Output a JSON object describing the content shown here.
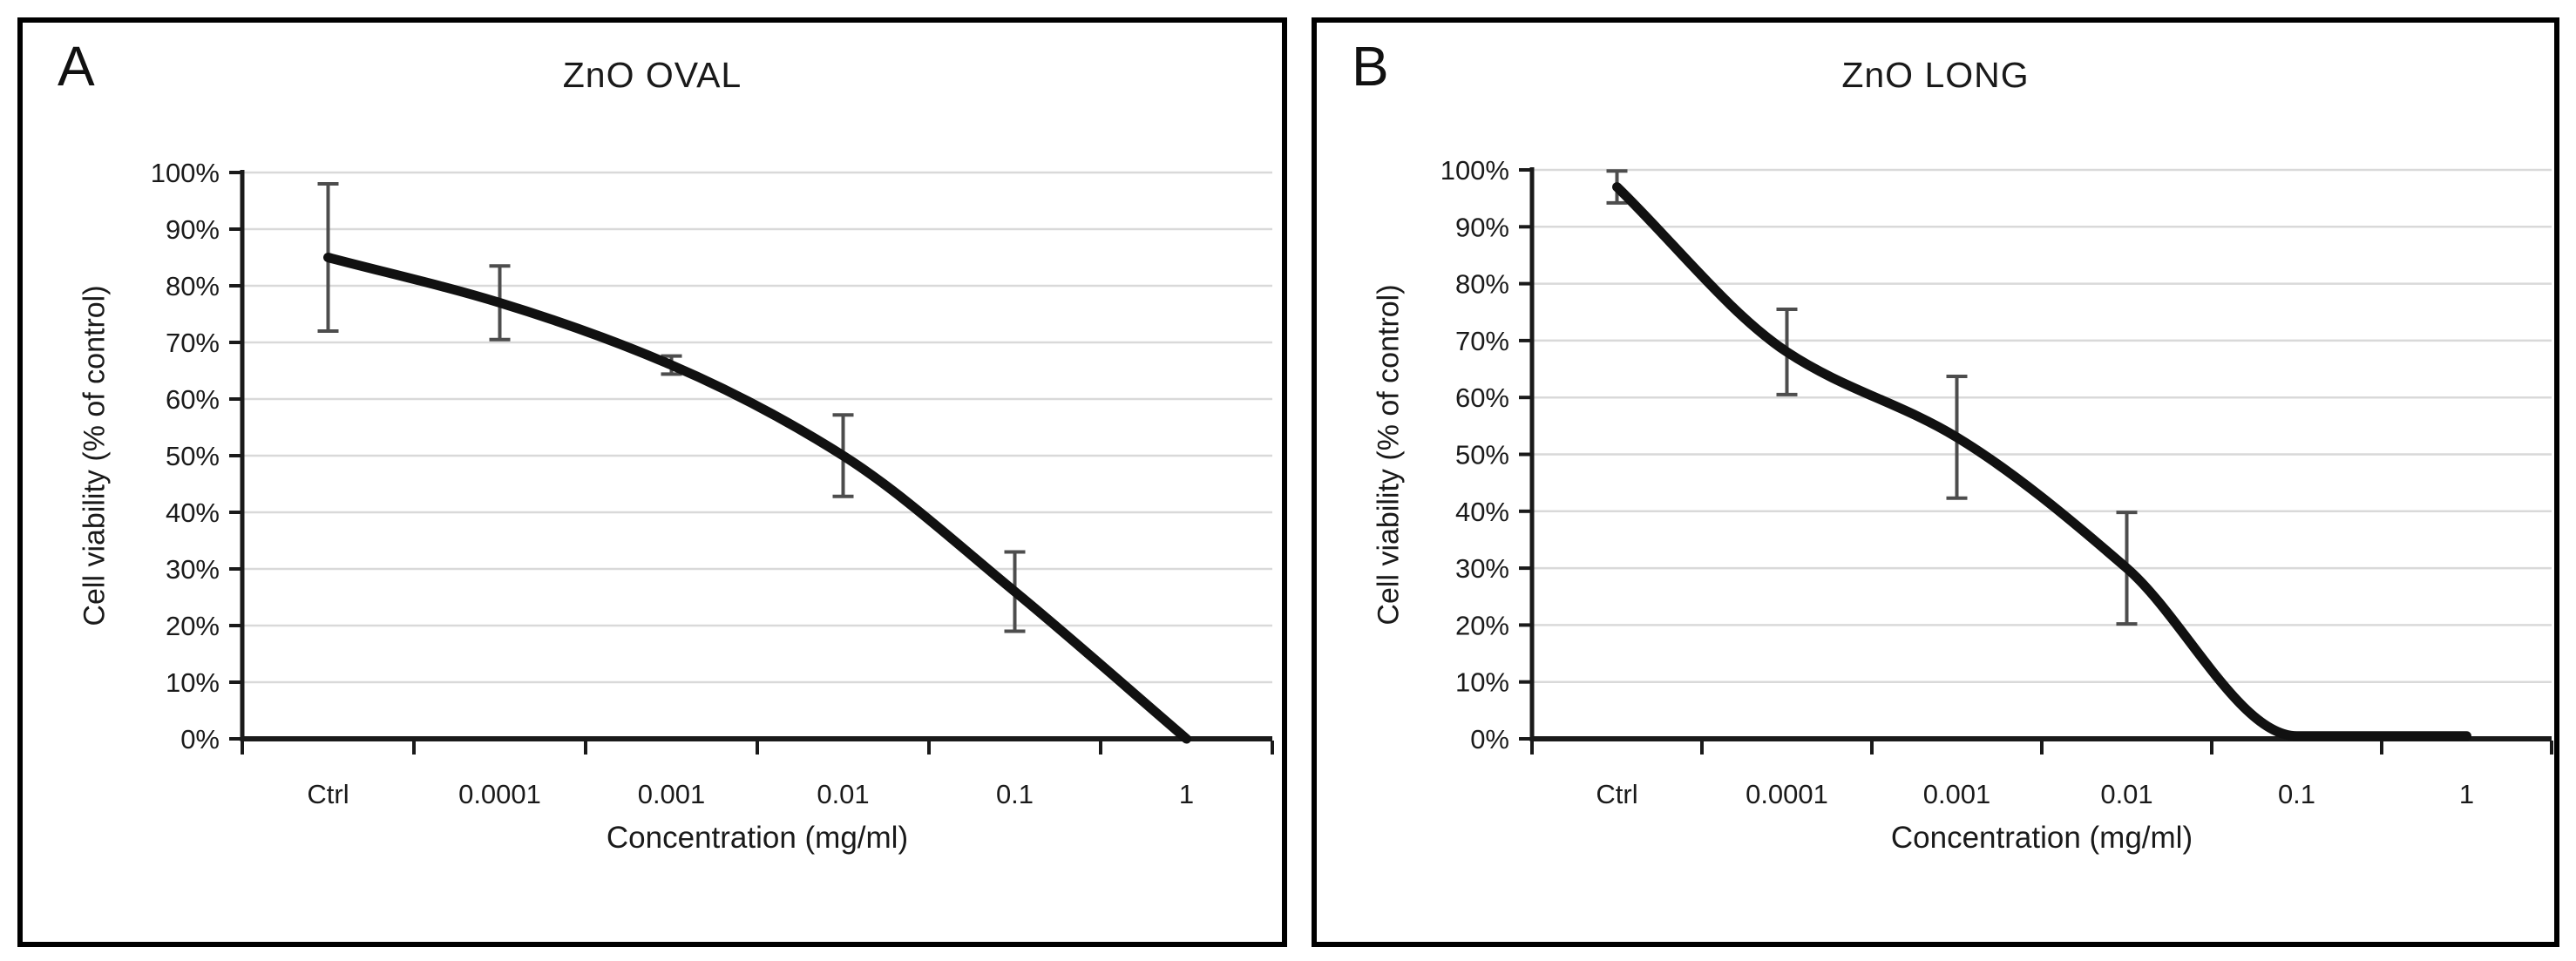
{
  "figure": {
    "background": "#ffffff",
    "colors": {
      "line": "#111111",
      "error_bar": "#4d4d4d",
      "gridline": "#d9d9d9",
      "axis": "#1a1a1a",
      "text": "#1a1a1a",
      "panel_border": "#000000"
    }
  },
  "chart_data": [
    {
      "type": "line",
      "panel_label": "A",
      "title": "ZnO OVAL",
      "xlabel": "Concentration (mg/ml)",
      "ylabel": "Cell viability (% of control)",
      "categories": [
        "Ctrl",
        "0.0001",
        "0.001",
        "0.01",
        "0.1",
        "1"
      ],
      "series": [
        {
          "name": "ZnO OVAL cell viability",
          "values": [
            85,
            77,
            66,
            50,
            26,
            0
          ],
          "error_bars": [
            13,
            6.5,
            1.6,
            7.2,
            7,
            0
          ]
        }
      ],
      "ylim": [
        0,
        100
      ],
      "ytick_step": 10,
      "ytick_labels": [
        "0%",
        "10%",
        "20%",
        "30%",
        "40%",
        "50%",
        "60%",
        "70%",
        "80%",
        "90%",
        "100%"
      ],
      "grid": "horizontal",
      "legend": "none"
    },
    {
      "type": "line",
      "panel_label": "B",
      "title": "ZnO LONG",
      "xlabel": "Concentration (mg/ml)",
      "ylabel": "Cell viability (% of control)",
      "categories": [
        "Ctrl",
        "0.0001",
        "0.001",
        "0.01",
        "0.1",
        "1"
      ],
      "series": [
        {
          "name": "ZnO LONG cell viability",
          "values": [
            97,
            68,
            53,
            30,
            0.5,
            0.5
          ],
          "error_bars": [
            2.8,
            7.5,
            10.7,
            9.8,
            0,
            0
          ]
        }
      ],
      "ylim": [
        0,
        100
      ],
      "ytick_step": 10,
      "ytick_labels": [
        "0%",
        "10%",
        "20%",
        "30%",
        "40%",
        "50%",
        "60%",
        "70%",
        "80%",
        "90%",
        "100%"
      ],
      "grid": "horizontal",
      "legend": "none"
    }
  ]
}
